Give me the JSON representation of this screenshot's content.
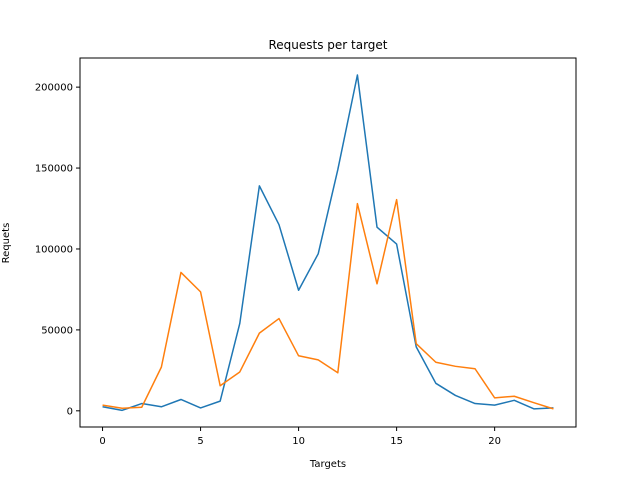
{
  "chart_data": {
    "type": "line",
    "title": "Requests per target",
    "xlabel": "Targets",
    "ylabel": "Requets",
    "xlim": [
      -1.15,
      24.15
    ],
    "ylim": [
      -10000,
      218000
    ],
    "xticks": [
      0,
      5,
      10,
      15,
      20
    ],
    "yticks": [
      0,
      50000,
      100000,
      150000,
      200000
    ],
    "grid": false,
    "x": [
      0,
      1,
      2,
      3,
      4,
      5,
      6,
      7,
      8,
      9,
      10,
      11,
      12,
      13,
      14,
      15,
      16,
      17,
      18,
      19,
      20,
      21,
      22,
      23
    ],
    "series": [
      {
        "color": "#1f77b4",
        "values": [
          2500,
          300,
          4500,
          2500,
          7000,
          1800,
          6000,
          54000,
          139000,
          115000,
          74500,
          97000,
          149000,
          207500,
          113500,
          103000,
          39500,
          17000,
          9500,
          4500,
          3500,
          6500,
          1200,
          1800
        ]
      },
      {
        "color": "#ff7f0e",
        "values": [
          3500,
          1600,
          2200,
          27000,
          85500,
          73500,
          15500,
          24000,
          48000,
          57000,
          34000,
          31500,
          23500,
          128000,
          78500,
          130500,
          41500,
          30000,
          27500,
          26000,
          8000,
          9000,
          5000,
          1200
        ]
      }
    ]
  }
}
